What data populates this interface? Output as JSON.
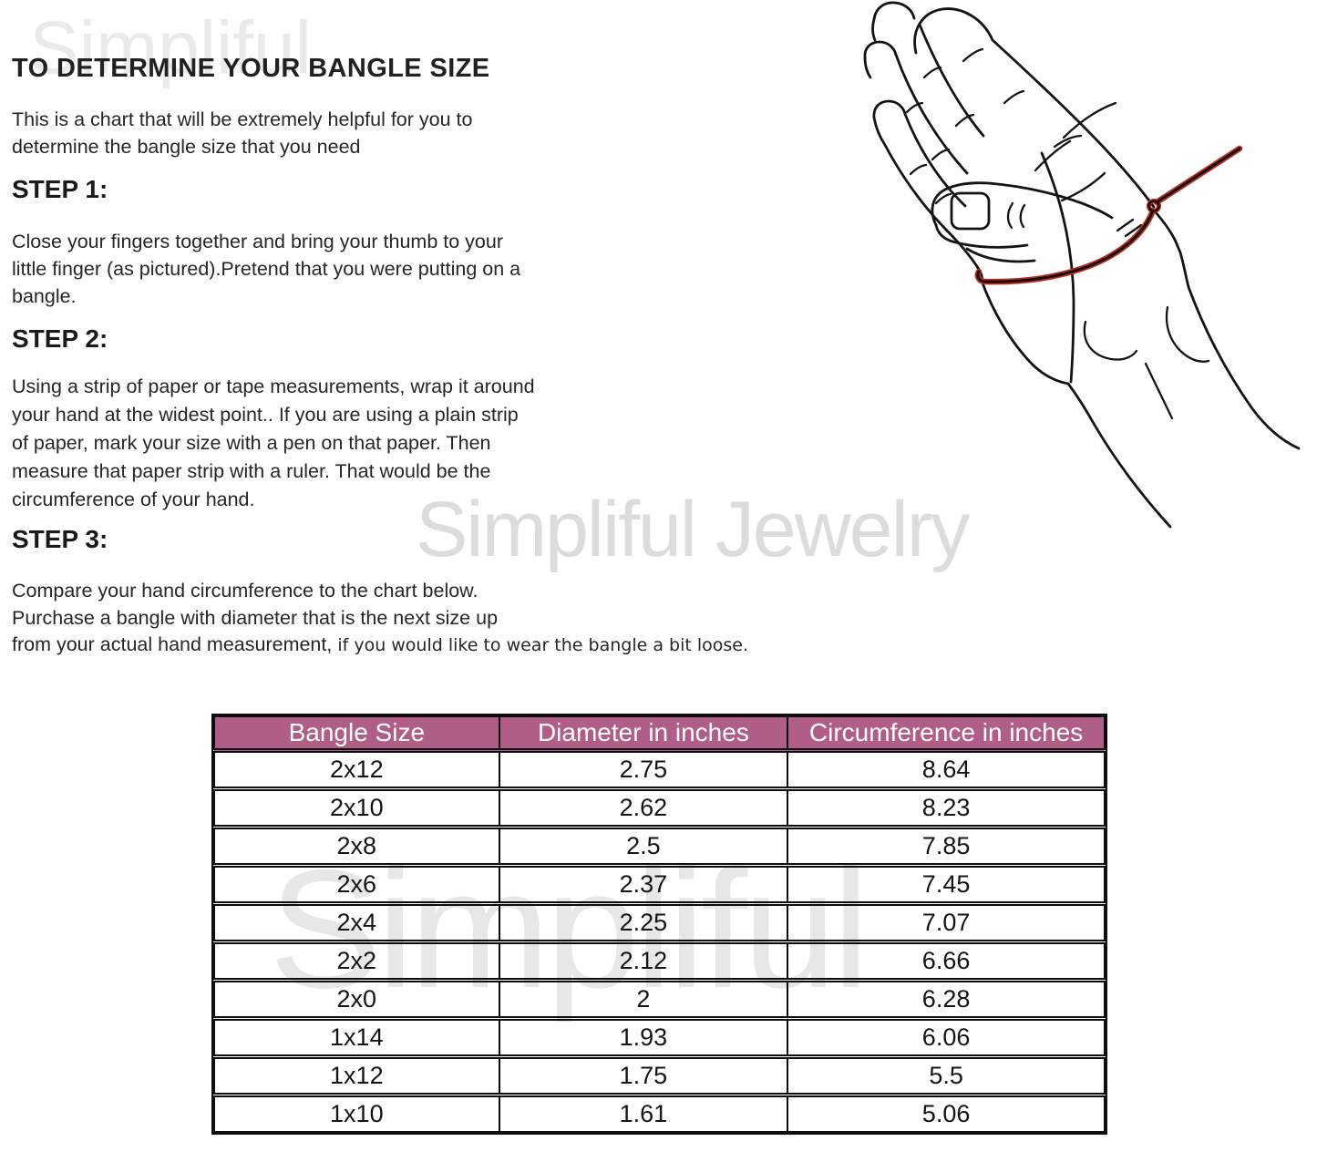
{
  "document": {
    "title": "TO DETERMINE YOUR BANGLE SIZE",
    "intro": "This is a chart that will be extremely helpful for you to\ndetermine the bangle size that you need",
    "steps": [
      {
        "heading": "STEP 1:",
        "body": "Close your fingers together and bring your thumb to your\nlittle finger (as pictured).Pretend that you were putting on a\nbangle."
      },
      {
        "heading": "STEP 2:",
        "body": "Using a strip of paper or tape measurements, wrap it around\nyour hand at the widest point.. If you are using a plain strip\nof paper, mark your size with a pen on that paper. Then\nmeasure that paper strip with a ruler. That would be the\ncircumference of your hand."
      },
      {
        "heading": "STEP 3:",
        "body": "Compare your hand circumference to the chart below.\nPurchase a bangle with diameter that is the next size up\nfrom your actual hand measurement, ",
        "note": "if you would like to wear the bangle a bit loose."
      }
    ]
  },
  "watermarks": {
    "top": "Simpliful",
    "middle": "Simpliful Jewelry",
    "bottom": "Simpliful"
  },
  "illustration": {
    "name": "hand-with-measuring-string",
    "line_color": "#141414",
    "string_color_outer": "#b5301f",
    "string_color_core": "#1c0402"
  },
  "size_table": {
    "header_bg": "#b05e87",
    "header_text_color": "#ffffff",
    "columns": [
      "Bangle Size",
      "Diameter in inches",
      "Circumference in inches"
    ],
    "rows": [
      [
        "2x12",
        "2.75",
        "8.64"
      ],
      [
        "2x10",
        "2.62",
        "8.23"
      ],
      [
        "2x8",
        "2.5",
        "7.85"
      ],
      [
        "2x6",
        "2.37",
        "7.45"
      ],
      [
        "2x4",
        "2.25",
        "7.07"
      ],
      [
        "2x2",
        "2.12",
        "6.66"
      ],
      [
        "2x0",
        "2",
        "6.28"
      ],
      [
        "1x14",
        "1.93",
        "6.06"
      ],
      [
        "1x12",
        "1.75",
        "5.5"
      ],
      [
        "1x10",
        "1.61",
        "5.06"
      ]
    ]
  }
}
